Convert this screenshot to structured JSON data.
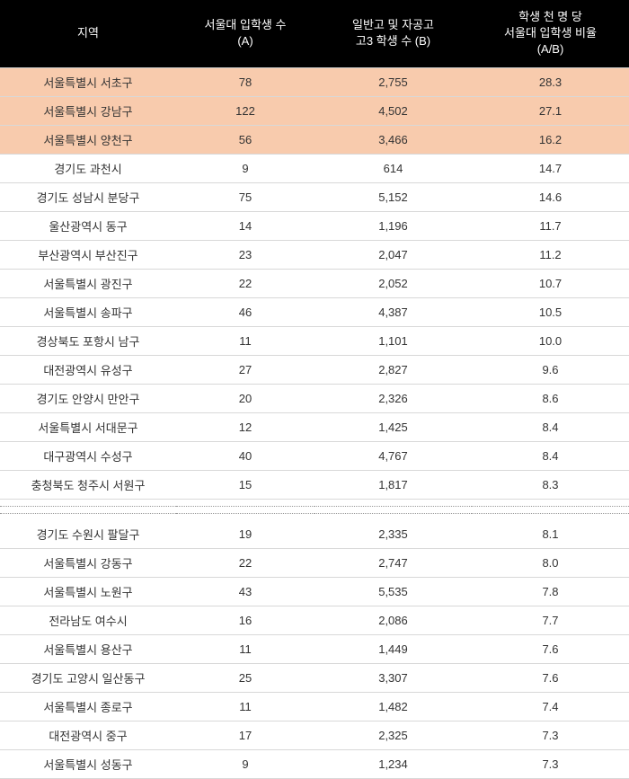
{
  "headers": {
    "region": "지역",
    "col_a": "서울대 입학생 수\n(A)",
    "col_b": "일반고 및 자공고\n고3 학생 수 (B)",
    "col_ratio": "학생 천 명 당\n서울대 입학생 비율\n(A/B)"
  },
  "highlight_bg": "#f8cbad",
  "rows_top": [
    {
      "region": "서울특별시 서초구",
      "a": "78",
      "b": "2,755",
      "ratio": "28.3",
      "hl": true
    },
    {
      "region": "서울특별시 강남구",
      "a": "122",
      "b": "4,502",
      "ratio": "27.1",
      "hl": true
    },
    {
      "region": "서울특별시 양천구",
      "a": "56",
      "b": "3,466",
      "ratio": "16.2",
      "hl": true
    },
    {
      "region": "경기도 과천시",
      "a": "9",
      "b": "614",
      "ratio": "14.7",
      "hl": false
    },
    {
      "region": "경기도 성남시 분당구",
      "a": "75",
      "b": "5,152",
      "ratio": "14.6",
      "hl": false
    },
    {
      "region": "울산광역시 동구",
      "a": "14",
      "b": "1,196",
      "ratio": "11.7",
      "hl": false
    },
    {
      "region": "부산광역시 부산진구",
      "a": "23",
      "b": "2,047",
      "ratio": "11.2",
      "hl": false
    },
    {
      "region": "서울특별시 광진구",
      "a": "22",
      "b": "2,052",
      "ratio": "10.7",
      "hl": false
    },
    {
      "region": "서울특별시 송파구",
      "a": "46",
      "b": "4,387",
      "ratio": "10.5",
      "hl": false
    },
    {
      "region": "경상북도 포항시 남구",
      "a": "11",
      "b": "1,101",
      "ratio": "10.0",
      "hl": false
    },
    {
      "region": "대전광역시 유성구",
      "a": "27",
      "b": "2,827",
      "ratio": "9.6",
      "hl": false
    },
    {
      "region": "경기도 안양시 만안구",
      "a": "20",
      "b": "2,326",
      "ratio": "8.6",
      "hl": false
    },
    {
      "region": "서울특별시 서대문구",
      "a": "12",
      "b": "1,425",
      "ratio": "8.4",
      "hl": false
    },
    {
      "region": "대구광역시 수성구",
      "a": "40",
      "b": "4,767",
      "ratio": "8.4",
      "hl": false
    },
    {
      "region": "충청북도 청주시 서원구",
      "a": "15",
      "b": "1,817",
      "ratio": "8.3",
      "hl": false
    }
  ],
  "rows_bottom": [
    {
      "region": "경기도 수원시 팔달구",
      "a": "19",
      "b": "2,335",
      "ratio": "8.1",
      "hl": false
    },
    {
      "region": "서울특별시 강동구",
      "a": "22",
      "b": "2,747",
      "ratio": "8.0",
      "hl": false
    },
    {
      "region": "서울특별시 노원구",
      "a": "43",
      "b": "5,535",
      "ratio": "7.8",
      "hl": false
    },
    {
      "region": "전라남도 여수시",
      "a": "16",
      "b": "2,086",
      "ratio": "7.7",
      "hl": false
    },
    {
      "region": "서울특별시 용산구",
      "a": "11",
      "b": "1,449",
      "ratio": "7.6",
      "hl": false
    },
    {
      "region": "경기도 고양시 일산동구",
      "a": "25",
      "b": "3,307",
      "ratio": "7.6",
      "hl": false
    },
    {
      "region": "서울특별시 종로구",
      "a": "11",
      "b": "1,482",
      "ratio": "7.4",
      "hl": false
    },
    {
      "region": "대전광역시 중구",
      "a": "17",
      "b": "2,325",
      "ratio": "7.3",
      "hl": false
    },
    {
      "region": "서울특별시 성동구",
      "a": "9",
      "b": "1,234",
      "ratio": "7.3",
      "hl": false
    }
  ]
}
